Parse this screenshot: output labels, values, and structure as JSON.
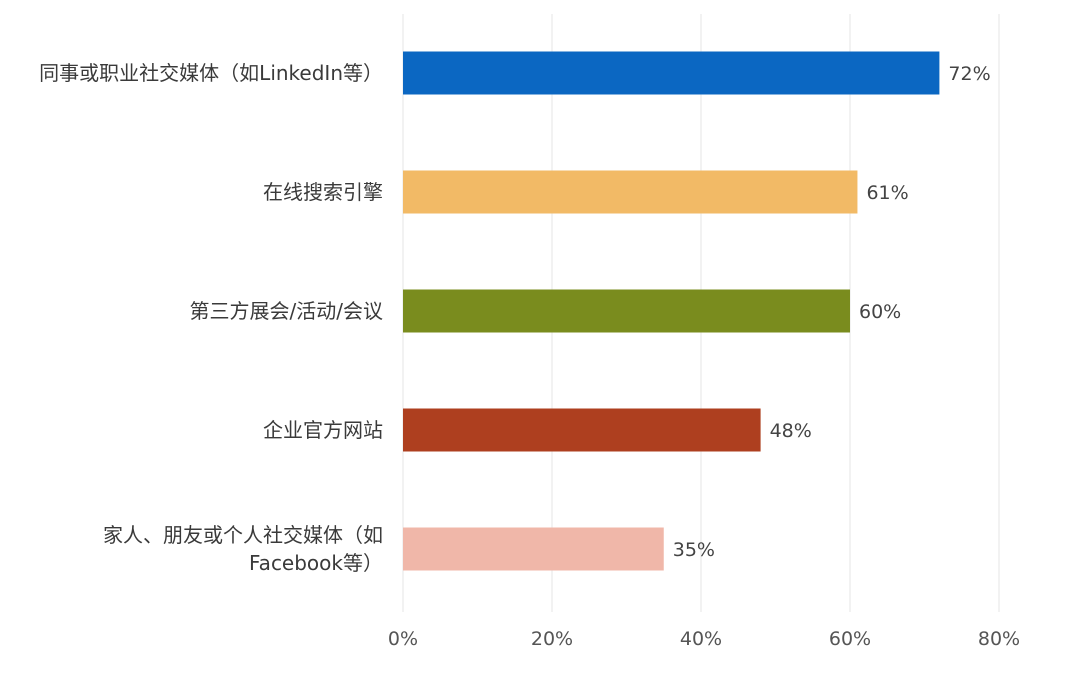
{
  "chart_data": {
    "type": "bar",
    "orientation": "horizontal",
    "categories": [
      [
        "同事或职业社交媒体（如LinkedIn等）"
      ],
      [
        "在线搜索引擎"
      ],
      [
        "第三方展会/活动/会议"
      ],
      [
        "企业官方网站"
      ],
      [
        "家人、朋友或个人社交媒体（如",
        "Facebook等）"
      ]
    ],
    "values": [
      72,
      61,
      60,
      48,
      35
    ],
    "value_labels": [
      "72%",
      "61%",
      "60%",
      "48%",
      "35%"
    ],
    "colors": [
      "#0b67c2",
      "#f2ba66",
      "#7a8c1e",
      "#ae3f1f",
      "#f0b7a9"
    ],
    "xlim": [
      0,
      80
    ],
    "x_ticks": [
      0,
      20,
      40,
      60,
      80
    ],
    "x_tick_labels": [
      "0%",
      "20%",
      "40%",
      "60%",
      "80%"
    ],
    "grid": true
  }
}
